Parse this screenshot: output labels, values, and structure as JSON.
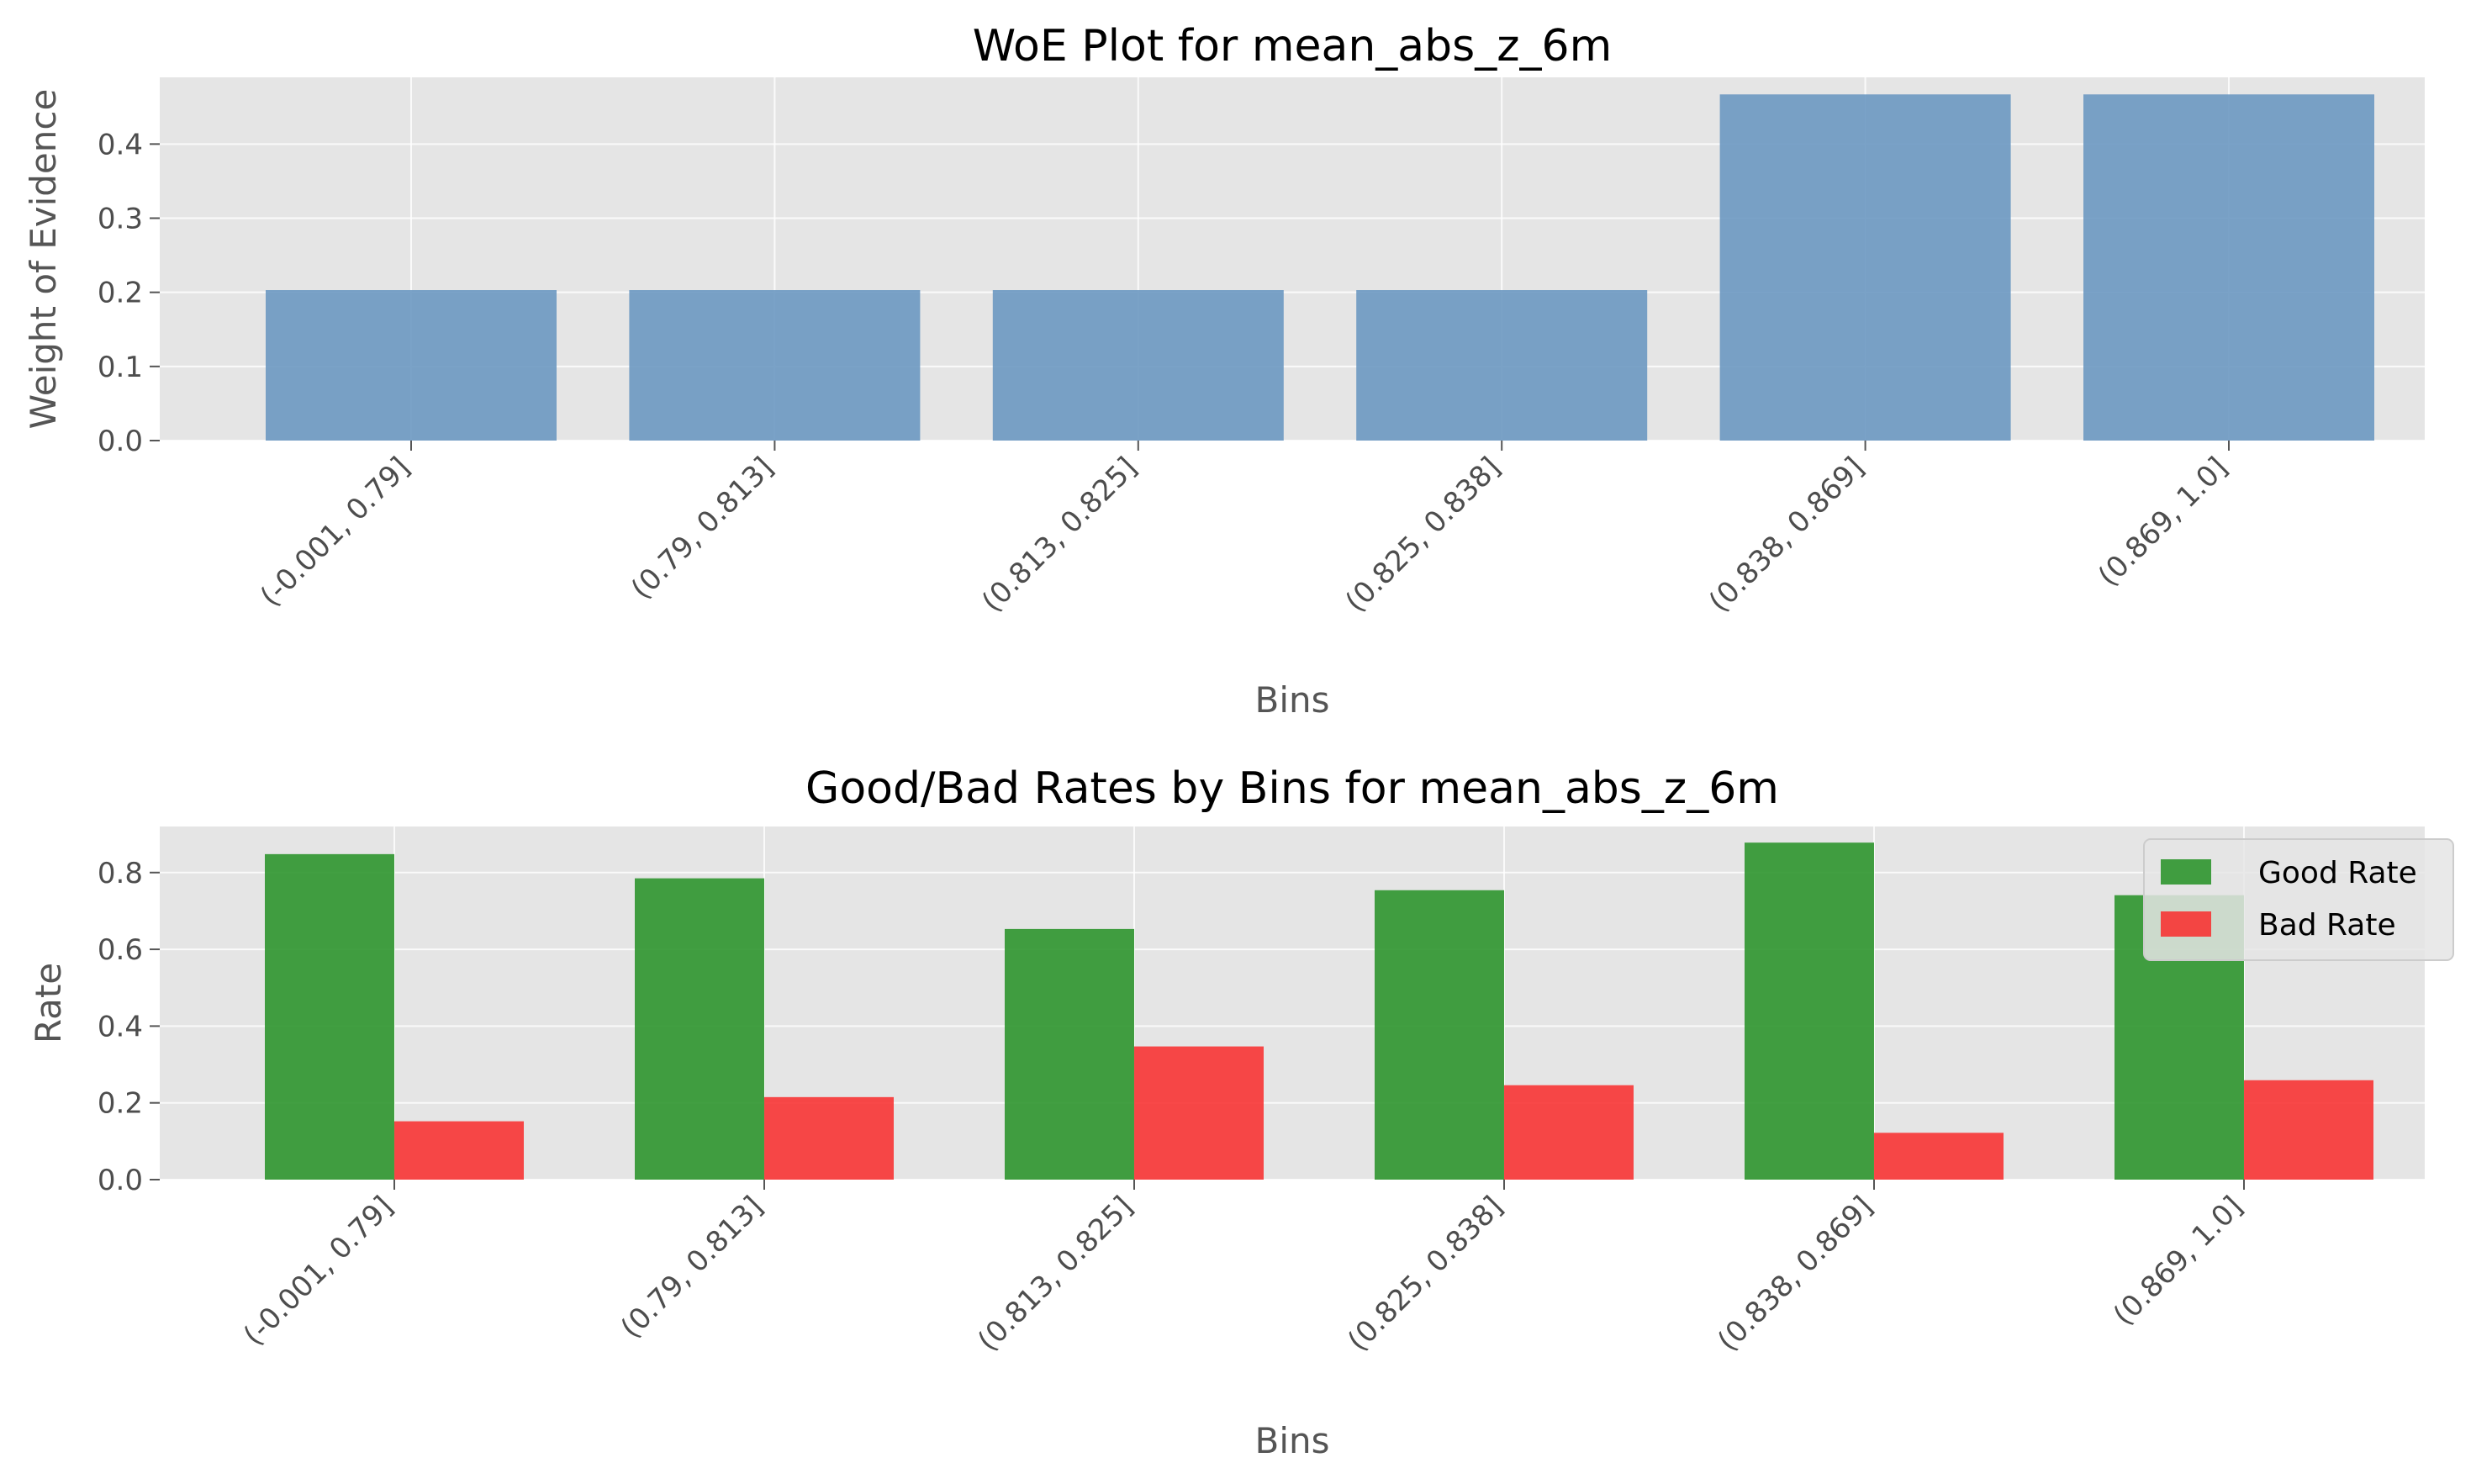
{
  "chart_data": [
    {
      "type": "bar",
      "title": "WoE Plot for mean_abs_z_6m",
      "xlabel": "Bins",
      "ylabel": "Weight of Evidence",
      "categories": [
        "(-0.001, 0.79]",
        "(0.79, 0.813]",
        "(0.813, 0.825]",
        "(0.825, 0.838]",
        "(0.838, 0.869]",
        "(0.869, 1.0]"
      ],
      "values": [
        0.203,
        0.203,
        0.203,
        0.203,
        0.467,
        0.467
      ],
      "ylim": [
        0,
        0.49
      ],
      "yticks": [
        0.0,
        0.1,
        0.2,
        0.3,
        0.4
      ],
      "ytick_labels": [
        "0.0",
        "0.1",
        "0.2",
        "0.3",
        "0.4"
      ],
      "grid": true,
      "color": "#6b98c1"
    },
    {
      "type": "bar",
      "title": "Good/Bad Rates by Bins for mean_abs_z_6m",
      "xlabel": "Bins",
      "ylabel": "Rate",
      "categories": [
        "(-0.001, 0.79]",
        "(0.79, 0.813]",
        "(0.813, 0.825]",
        "(0.825, 0.838]",
        "(0.838, 0.869]",
        "(0.869, 1.0]"
      ],
      "series": [
        {
          "name": "Good Rate",
          "values": [
            0.848,
            0.785,
            0.653,
            0.754,
            0.878,
            0.741
          ],
          "color": "#2e952e"
        },
        {
          "name": "Bad Rate",
          "values": [
            0.152,
            0.215,
            0.347,
            0.246,
            0.122,
            0.259
          ],
          "color": "#f73434"
        }
      ],
      "ylim": [
        0,
        0.92
      ],
      "yticks": [
        0.0,
        0.2,
        0.4,
        0.6,
        0.8
      ],
      "ytick_labels": [
        "0.0",
        "0.2",
        "0.4",
        "0.6",
        "0.8"
      ],
      "grid": true,
      "legend": "top-right"
    }
  ]
}
